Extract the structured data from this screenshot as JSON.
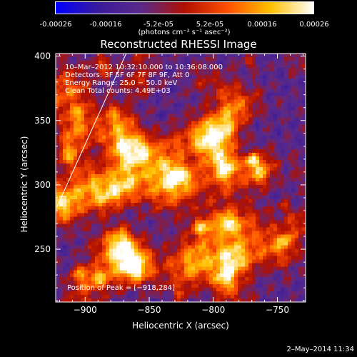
{
  "colorbar": {
    "tick_labels": [
      "-0.00026",
      "-0.00016",
      "-5.2e-05",
      "5.2e-05",
      "0.00016",
      "0.00026"
    ],
    "tick_values": [
      -0.00026,
      -0.00016,
      -5.2e-05,
      5.2e-05,
      0.00016,
      0.00026
    ],
    "range": [
      -0.00026,
      0.00026
    ],
    "units": "(photons cm⁻² s⁻¹ asec⁻²)",
    "colors": [
      "#0000ff",
      "#3a1a9a",
      "#5a2a8a",
      "#b01000",
      "#ff5000",
      "#ffc000",
      "#ffffff"
    ]
  },
  "chart_data": {
    "type": "heatmap",
    "title": "Reconstructed RHESSI Image",
    "xlabel": "Heliocentric X (arcsec)",
    "ylabel": "Heliocentric Y (arcsec)",
    "xlim": [
      -923,
      -728
    ],
    "ylim": [
      209,
      402
    ],
    "xticks": [
      -900,
      -850,
      -800,
      -750
    ],
    "xtick_labels": [
      "−900",
      "−850",
      "−800",
      "−750"
    ],
    "yticks": [
      250,
      300,
      350,
      400
    ],
    "ytick_labels": [
      "250",
      "300",
      "350",
      "400"
    ],
    "peak_position": [
      -918,
      284
    ],
    "annotations": {
      "time_range": "10–Mar–2012 10:32:10.000 to 10:36:08.000",
      "detectors": "Detectors: 3F 5F 6F 7F 8F 9F, Att 0",
      "energy": "Energy Range: 25.0 − 50.0 keV",
      "clean": "Clean     Total counts: 4.49E+03",
      "peak": "Position of Peak = [−918,284]"
    },
    "limb_line": {
      "x": [
        -922,
        -868
      ],
      "y": [
        283,
        402
      ]
    }
  },
  "footer": {
    "date": "2–May–2014 11:34"
  }
}
